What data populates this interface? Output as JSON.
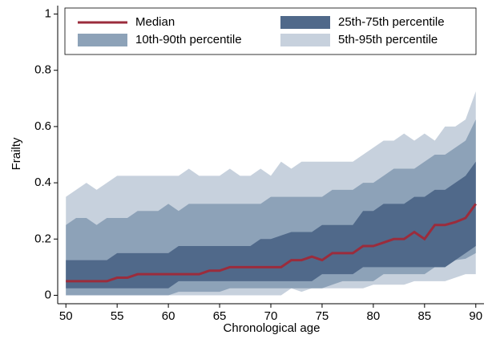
{
  "chart_data": {
    "type": "fan",
    "x_label": "Chronological age",
    "y_label": "Frailty",
    "x": [
      50,
      51,
      52,
      53,
      54,
      55,
      56,
      57,
      58,
      59,
      60,
      61,
      62,
      63,
      64,
      65,
      66,
      67,
      68,
      69,
      70,
      71,
      72,
      73,
      74,
      75,
      76,
      77,
      78,
      79,
      80,
      81,
      82,
      83,
      84,
      85,
      86,
      87,
      88,
      89,
      90
    ],
    "xlim": [
      49.2,
      90.8
    ],
    "xticks": [
      50,
      55,
      60,
      65,
      70,
      75,
      80,
      85,
      90
    ],
    "ylim": [
      -0.03,
      1.03
    ],
    "yticks": [
      0,
      0.2,
      0.4,
      0.6,
      0.8,
      1
    ],
    "series": [
      {
        "name": "Median",
        "color": "#9b2c3c",
        "values": [
          0.05,
          0.05,
          0.05,
          0.05,
          0.05,
          0.0625,
          0.0625,
          0.075,
          0.075,
          0.075,
          0.075,
          0.075,
          0.075,
          0.075,
          0.0875,
          0.0875,
          0.1,
          0.1,
          0.1,
          0.1,
          0.1,
          0.1,
          0.125,
          0.125,
          0.1375,
          0.125,
          0.15,
          0.15,
          0.15,
          0.175,
          0.175,
          0.1875,
          0.2,
          0.2,
          0.225,
          0.2,
          0.25,
          0.25,
          0.26,
          0.275,
          0.325
        ]
      },
      {
        "name": "25th-75th percentile",
        "color": "#50698a",
        "lower": [
          0.025,
          0.025,
          0.025,
          0.025,
          0.025,
          0.025,
          0.025,
          0.025,
          0.025,
          0.025,
          0.025,
          0.05,
          0.05,
          0.05,
          0.05,
          0.05,
          0.05,
          0.05,
          0.05,
          0.05,
          0.05,
          0.05,
          0.05,
          0.05,
          0.05,
          0.075,
          0.075,
          0.075,
          0.075,
          0.1,
          0.1,
          0.1,
          0.1,
          0.1,
          0.1,
          0.1,
          0.1,
          0.1,
          0.125,
          0.15,
          0.175
        ],
        "upper": [
          0.125,
          0.125,
          0.125,
          0.125,
          0.125,
          0.15,
          0.15,
          0.15,
          0.15,
          0.15,
          0.15,
          0.175,
          0.175,
          0.175,
          0.175,
          0.175,
          0.175,
          0.175,
          0.175,
          0.2,
          0.2,
          0.2125,
          0.225,
          0.225,
          0.225,
          0.25,
          0.25,
          0.25,
          0.25,
          0.3,
          0.3,
          0.325,
          0.325,
          0.325,
          0.35,
          0.35,
          0.375,
          0.375,
          0.4,
          0.425,
          0.475
        ]
      },
      {
        "name": "10th-90th percentile",
        "color": "#8da2b8",
        "lower": [
          0,
          0,
          0,
          0,
          0,
          0,
          0,
          0,
          0,
          0,
          0,
          0.0125,
          0.0125,
          0.0125,
          0.0125,
          0.0125,
          0.025,
          0.025,
          0.025,
          0.025,
          0.025,
          0.025,
          0.025,
          0.025,
          0.025,
          0.025,
          0.0375,
          0.05,
          0.05,
          0.05,
          0.05,
          0.075,
          0.075,
          0.075,
          0.075,
          0.075,
          0.1,
          0.1,
          0.125,
          0.13,
          0.15
        ],
        "upper": [
          0.25,
          0.275,
          0.275,
          0.25,
          0.275,
          0.275,
          0.275,
          0.3,
          0.3,
          0.3,
          0.325,
          0.3,
          0.325,
          0.325,
          0.325,
          0.325,
          0.325,
          0.325,
          0.325,
          0.325,
          0.35,
          0.35,
          0.35,
          0.35,
          0.35,
          0.35,
          0.375,
          0.375,
          0.375,
          0.4,
          0.4,
          0.425,
          0.45,
          0.45,
          0.45,
          0.475,
          0.5,
          0.5,
          0.525,
          0.55,
          0.625
        ]
      },
      {
        "name": "5th-95th percentile",
        "color": "#c7d1dd",
        "lower": [
          0,
          0,
          0,
          0,
          0,
          0,
          0,
          0,
          0,
          0,
          0,
          0,
          0,
          0,
          0,
          0,
          0,
          0,
          0,
          0,
          0,
          0,
          0.025,
          0.0125,
          0.025,
          0.025,
          0.025,
          0.025,
          0.025,
          0.025,
          0.0375,
          0.0375,
          0.0375,
          0.0375,
          0.05,
          0.05,
          0.05,
          0.05,
          0.0625,
          0.075,
          0.075
        ],
        "upper": [
          0.35,
          0.375,
          0.4,
          0.375,
          0.4,
          0.425,
          0.425,
          0.425,
          0.425,
          0.425,
          0.425,
          0.425,
          0.45,
          0.425,
          0.425,
          0.425,
          0.45,
          0.425,
          0.425,
          0.45,
          0.425,
          0.475,
          0.45,
          0.475,
          0.475,
          0.475,
          0.475,
          0.475,
          0.475,
          0.5,
          0.525,
          0.55,
          0.55,
          0.575,
          0.55,
          0.575,
          0.55,
          0.6,
          0.6,
          0.625,
          0.725
        ]
      }
    ]
  }
}
